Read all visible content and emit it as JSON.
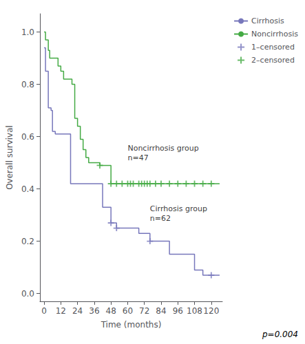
{
  "chart_data": {
    "type": "line",
    "xlabel": "Time (months)",
    "ylabel": "Overall survival",
    "xlim": [
      -3,
      128
    ],
    "ylim": [
      -0.03,
      1.07
    ],
    "xticks": [
      0,
      12,
      24,
      36,
      48,
      60,
      72,
      84,
      96,
      108,
      120
    ],
    "yticks": [
      {
        "value": 0.0,
        "label": "0.0"
      },
      0.2,
      0.4,
      0.6,
      0.8,
      {
        "value": 1.0,
        "label": "1.0"
      }
    ],
    "grid": false,
    "legend": "right",
    "series": [
      {
        "name": "Cirrhosis",
        "type": "step",
        "color": "#7777bb",
        "x": [
          0,
          1,
          2,
          3,
          4,
          5,
          6,
          7,
          8,
          9,
          10,
          11,
          12,
          14,
          15,
          16,
          17,
          18,
          19,
          20,
          22,
          24,
          26,
          28,
          30,
          32,
          34,
          36,
          38,
          40,
          42,
          44,
          46,
          48,
          50,
          52,
          54,
          56,
          60,
          64,
          68,
          72,
          76,
          78,
          80,
          84,
          90,
          96,
          102,
          108,
          114,
          120,
          126
        ],
        "values": [
          0.94,
          0.85,
          0.85,
          0.71,
          0.71,
          0.7,
          0.62,
          0.62,
          0.61,
          0.61,
          0.61,
          0.61,
          0.61,
          0.61,
          0.61,
          0.61,
          0.61,
          0.61,
          0.42,
          0.42,
          0.42,
          0.42,
          0.42,
          0.42,
          0.42,
          0.42,
          0.42,
          0.42,
          0.42,
          0.42,
          0.33,
          0.33,
          0.33,
          0.27,
          0.27,
          0.25,
          0.25,
          0.25,
          0.25,
          0.25,
          0.23,
          0.23,
          0.2,
          0.2,
          0.2,
          0.2,
          0.15,
          0.15,
          0.15,
          0.09,
          0.07,
          0.07,
          0.07
        ]
      },
      {
        "name": "Noncirrhosis",
        "type": "step",
        "color": "#44aa44",
        "x": [
          0,
          1,
          2,
          3,
          4,
          5,
          8,
          10,
          11,
          12,
          14,
          16,
          18,
          20,
          22,
          24,
          26,
          28,
          30,
          32,
          34,
          36,
          38,
          40,
          42,
          44,
          46,
          48,
          50,
          52,
          54,
          56,
          58,
          60,
          62,
          64,
          66,
          68,
          70,
          72,
          74,
          76,
          78,
          80,
          82,
          84,
          86,
          88,
          90,
          92,
          94,
          96,
          98,
          100,
          102,
          104,
          106,
          108,
          110,
          112,
          114,
          116,
          118,
          120,
          122,
          124,
          126
        ],
        "values": [
          1.0,
          0.97,
          0.97,
          0.93,
          0.9,
          0.9,
          0.9,
          0.87,
          0.87,
          0.85,
          0.82,
          0.82,
          0.82,
          0.8,
          0.67,
          0.64,
          0.59,
          0.55,
          0.52,
          0.5,
          0.5,
          0.5,
          0.5,
          0.49,
          0.49,
          0.49,
          0.49,
          0.42,
          0.42,
          0.42,
          0.42,
          0.42,
          0.42,
          0.42,
          0.42,
          0.42,
          0.42,
          0.42,
          0.42,
          0.42,
          0.42,
          0.42,
          0.42,
          0.42,
          0.42,
          0.42,
          0.42,
          0.42,
          0.42,
          0.42,
          0.42,
          0.42,
          0.42,
          0.42,
          0.42,
          0.42,
          0.42,
          0.42,
          0.42,
          0.42,
          0.42,
          0.42,
          0.42,
          0.42,
          0.42,
          0.42,
          0.42
        ]
      },
      {
        "name": "1–censored",
        "type": "scatter",
        "marker": "+",
        "color": "#7777bb",
        "x": [
          48,
          52,
          76,
          120
        ],
        "values": [
          0.27,
          0.25,
          0.2,
          0.07
        ]
      },
      {
        "name": "2–censored",
        "type": "scatter",
        "marker": "+",
        "color": "#44aa44",
        "x": [
          40,
          48,
          52,
          56,
          60,
          62,
          64,
          68,
          70,
          72,
          74,
          76,
          80,
          84,
          90,
          96,
          102,
          108,
          114,
          120
        ],
        "values": [
          0.49,
          0.42,
          0.42,
          0.42,
          0.42,
          0.42,
          0.42,
          0.42,
          0.42,
          0.42,
          0.42,
          0.42,
          0.42,
          0.42,
          0.42,
          0.42,
          0.42,
          0.42,
          0.42,
          0.42
        ]
      }
    ],
    "annotations": [
      {
        "text": "Noncirrhosis group\nn=47",
        "x": 60,
        "y": 0.5
      },
      {
        "text": "Cirrhosis group\nn=62",
        "x": 76,
        "y": 0.27
      },
      {
        "text": "p=0.004"
      }
    ]
  }
}
